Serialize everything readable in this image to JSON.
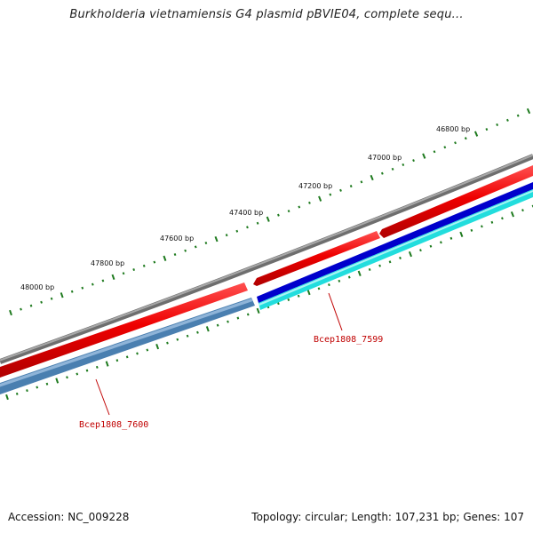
{
  "title": "Burkholderia vietnamiensis G4 plasmid pBVIE04, complete sequ...",
  "accession": "Accession: NC_009228",
  "summary": "Topology: circular; Length: 107,231 bp; Genes: 107",
  "ruler": {
    "labels": [
      "46800 bp",
      "47000 bp",
      "47200 bp",
      "47400 bp",
      "47600 bp",
      "47800 bp",
      "48000 bp"
    ]
  },
  "genes": [
    {
      "name": "Bcep1808_7599"
    },
    {
      "name": "Bcep1808_7600"
    }
  ],
  "colors": {
    "backbone": "#808080",
    "cds_red": "#e00000",
    "cds_blue": "#0000cc",
    "cds_cyan": "#22dddd",
    "cds_steel": "#4a7fb0",
    "ruler_ticks": "#1e7a1e",
    "gene_label": "#c00000"
  }
}
